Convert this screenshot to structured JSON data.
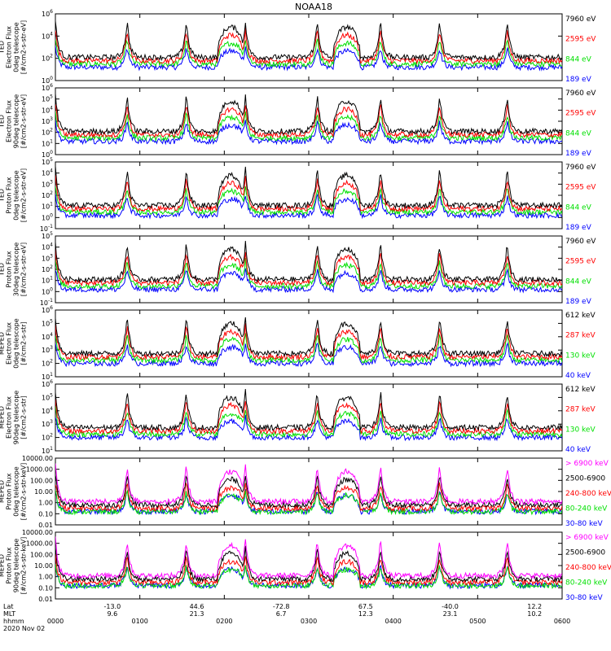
{
  "title": "NOAA18",
  "colors": {
    "black": "#000000",
    "blue": "#0000ff",
    "green": "#00e000",
    "red": "#ff0000",
    "magenta": "#ff00ff"
  },
  "chart_data": {
    "type": "line",
    "x_hhmm_ticks": [
      "0000",
      "0100",
      "0200",
      "0300",
      "0400",
      "0500",
      "0600"
    ],
    "x_hours_range": [
      0,
      6
    ],
    "bottom_labels": {
      "lat_label": "Lat",
      "mlt_label": "MLT",
      "hhmm_label": "hhmm",
      "date": "2020 Nov 02",
      "lat_ticks": [
        "-13.0",
        "44.6",
        "-72.8",
        "67.5",
        "-40.0",
        "12.2"
      ],
      "mlt_ticks": [
        "9.6",
        "21.3",
        "6.7",
        "12.3",
        "23.1",
        "10.2"
      ]
    },
    "panels": [
      {
        "ylabel": [
          "TED",
          "Electron Flux",
          "0deg telescope",
          "[#/cm2-s-str-eV]"
        ],
        "log_range": [
          0,
          6
        ],
        "ticks": [
          "10^0",
          "10^2",
          "10^4",
          "10^6"
        ],
        "legend": [
          {
            "label": "7960 eV",
            "color": "black"
          },
          {
            "label": "2595 eV",
            "color": "red"
          },
          {
            "label": "844 eV",
            "color": "green"
          },
          {
            "label": "189 eV",
            "color": "blue"
          }
        ]
      },
      {
        "ylabel": [
          "TED",
          "Electron Flux",
          "90deg telescope",
          "[#/cm2-s-str-eV]"
        ],
        "log_range": [
          0,
          6
        ],
        "ticks": [
          "10^0",
          "10^1",
          "10^2",
          "10^3",
          "10^4",
          "10^5",
          "10^6"
        ],
        "legend": [
          {
            "label": "7960 eV",
            "color": "black"
          },
          {
            "label": "2595 eV",
            "color": "red"
          },
          {
            "label": "844 eV",
            "color": "green"
          },
          {
            "label": "189 eV",
            "color": "blue"
          }
        ]
      },
      {
        "ylabel": [
          "TED",
          "Proton Flux",
          "0deg telescope",
          "[#/cm2-s-str-eV]"
        ],
        "log_range": [
          -1,
          5
        ],
        "ticks": [
          "10^-1",
          "10^0",
          "10^1",
          "10^2",
          "10^3",
          "10^4",
          "10^5"
        ],
        "legend": [
          {
            "label": "7960 eV",
            "color": "black"
          },
          {
            "label": "2595 eV",
            "color": "red"
          },
          {
            "label": "844 eV",
            "color": "green"
          },
          {
            "label": "189 eV",
            "color": "blue"
          }
        ]
      },
      {
        "ylabel": [
          "TED",
          "Proton Flux",
          "30deg telescope",
          "[#/cm2-s-str-eV]"
        ],
        "log_range": [
          -1,
          5
        ],
        "ticks": [
          "10^-1",
          "10^0",
          "10^1",
          "10^2",
          "10^3",
          "10^4",
          "10^5"
        ],
        "legend": [
          {
            "label": "7960 eV",
            "color": "black"
          },
          {
            "label": "2595 eV",
            "color": "red"
          },
          {
            "label": "844 eV",
            "color": "green"
          },
          {
            "label": "189 eV",
            "color": "blue"
          }
        ]
      },
      {
        "ylabel": [
          "MEPED",
          "Electron Flux",
          "0deg telescope",
          "[#/cm2-s-str]"
        ],
        "log_range": [
          1,
          6
        ],
        "ticks": [
          "10^1",
          "10^2",
          "10^3",
          "10^4",
          "10^5",
          "10^6"
        ],
        "legend": [
          {
            "label": "612 keV",
            "color": "black"
          },
          {
            "label": "287 keV",
            "color": "red"
          },
          {
            "label": "130 keV",
            "color": "green"
          },
          {
            "label": "40 keV",
            "color": "blue"
          }
        ]
      },
      {
        "ylabel": [
          "MEPED",
          "Electron Flux",
          "90deg telescope",
          "[#/cm2-s-str]"
        ],
        "log_range": [
          1,
          6
        ],
        "ticks": [
          "10^1",
          "10^2",
          "10^3",
          "10^4",
          "10^5",
          "10^6"
        ],
        "legend": [
          {
            "label": "612 keV",
            "color": "black"
          },
          {
            "label": "287 keV",
            "color": "red"
          },
          {
            "label": "130 keV",
            "color": "green"
          },
          {
            "label": "40 keV",
            "color": "blue"
          }
        ]
      },
      {
        "ylabel": [
          "MEPED",
          "Proton Flux",
          "0deg telescope",
          "[#/cm2-s-str-keV]"
        ],
        "log_range": [
          -2,
          4
        ],
        "ticks": [
          "0.01",
          "0.10",
          "1.00",
          "10.00",
          "100.00",
          "1000.00",
          "10000.00"
        ],
        "legend": [
          {
            "label": "> 6900 keV",
            "color": "magenta"
          },
          {
            "label": "2500-6900",
            "color": "black"
          },
          {
            "label": "240-800 keV",
            "color": "red"
          },
          {
            "label": "80-240 keV",
            "color": "green"
          },
          {
            "label": "30-80 keV",
            "color": "blue"
          }
        ]
      },
      {
        "ylabel": [
          "MEPED",
          "Proton Flux",
          "90deg telescope",
          "[#/cm2-s-str-keV]"
        ],
        "log_range": [
          -2,
          4
        ],
        "ticks": [
          "0.01",
          "0.10",
          "1.00",
          "10.00",
          "100.00",
          "1000.00",
          "10000.00"
        ],
        "legend": [
          {
            "label": "> 6900 keV",
            "color": "magenta"
          },
          {
            "label": "2500-6900",
            "color": "black"
          },
          {
            "label": "240-800 keV",
            "color": "red"
          },
          {
            "label": "80-240 keV",
            "color": "green"
          },
          {
            "label": "30-80 keV",
            "color": "blue"
          }
        ]
      }
    ]
  }
}
